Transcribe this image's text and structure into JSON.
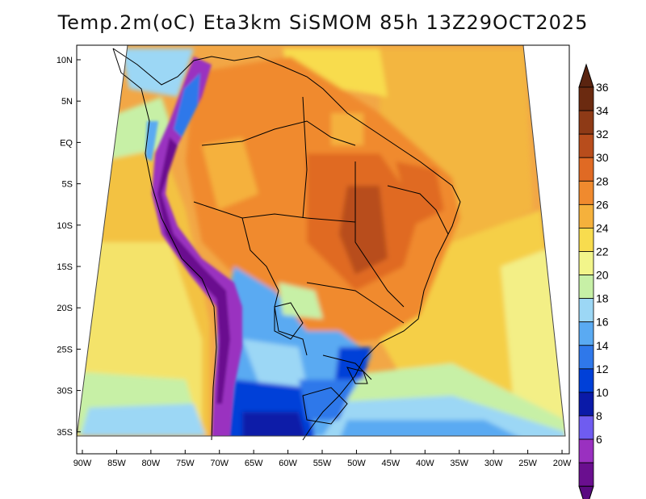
{
  "title": "Temp.2m(oC) Eta3km SiSMOM 85h 13Z29OCT2025",
  "latitude_labels": [
    "10N",
    "5N",
    "EQ",
    "5S",
    "10S",
    "15S",
    "20S",
    "25S",
    "30S",
    "35S"
  ],
  "longitude_labels": [
    "90W",
    "85W",
    "80W",
    "75W",
    "70W",
    "65W",
    "60W",
    "55W",
    "50W",
    "45W",
    "40W",
    "35W",
    "30W",
    "25W",
    "20W"
  ],
  "colorbar": {
    "labels": [
      "6",
      "8",
      "10",
      "12",
      "14",
      "16",
      "18",
      "20",
      "22",
      "24",
      "26",
      "28",
      "30",
      "32",
      "34",
      "36"
    ],
    "colors": [
      "#6a0f8f",
      "#9a30c0",
      "#6f5cf0",
      "#0a1aa8",
      "#0040d8",
      "#2f78ea",
      "#5aaaf2",
      "#9cd7f5",
      "#c7f0a6",
      "#f2f58a",
      "#f8dc4e",
      "#f5b13c",
      "#f08a2e",
      "#e06a24",
      "#b84d1c",
      "#8e3a16",
      "#6b2a10"
    ],
    "low_cap_color": "#5a0a80",
    "high_cap_color": "#5a2410"
  },
  "palette": {
    "ocean_base": "#f2a746",
    "frame": "#000000"
  }
}
